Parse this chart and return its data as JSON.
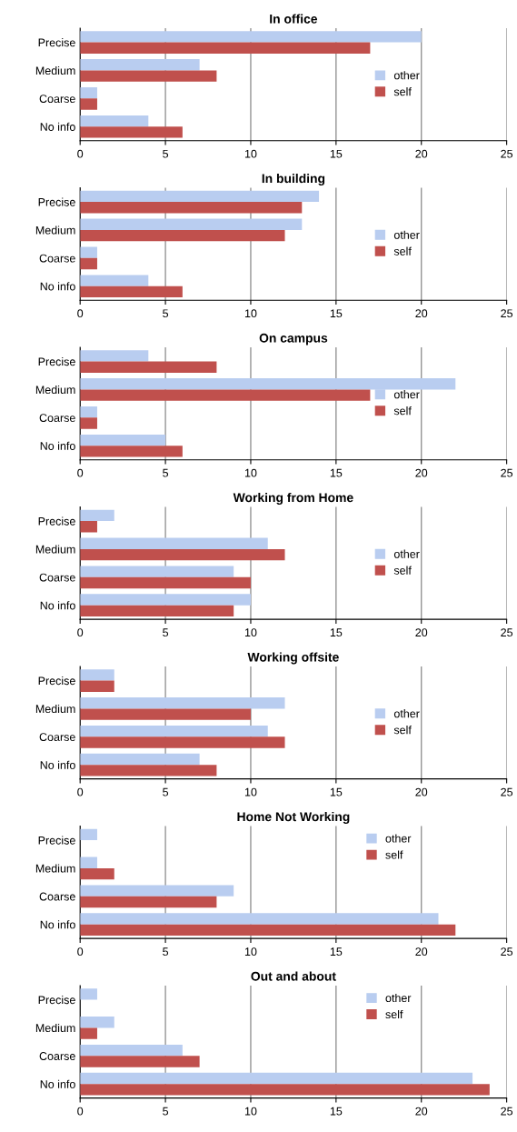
{
  "chart_data": [
    {
      "type": "bar",
      "orientation": "horizontal",
      "title": "In office",
      "categories": [
        "Precise",
        "Medium",
        "Coarse",
        "No info"
      ],
      "xlim": [
        0,
        25
      ],
      "xticks": [
        0,
        5,
        10,
        15,
        20,
        25
      ],
      "grid": "x",
      "legend": "right",
      "series": [
        {
          "name": "other",
          "color": "#b9cdf0",
          "values": [
            20,
            7,
            1,
            4
          ]
        },
        {
          "name": "self",
          "color": "#c0504d",
          "values": [
            17,
            8,
            1,
            6
          ]
        }
      ]
    },
    {
      "type": "bar",
      "orientation": "horizontal",
      "title": "In building",
      "categories": [
        "Precise",
        "Medium",
        "Coarse",
        "No info"
      ],
      "xlim": [
        0,
        25
      ],
      "xticks": [
        0,
        5,
        10,
        15,
        20,
        25
      ],
      "grid": "x",
      "legend": "right",
      "series": [
        {
          "name": "other",
          "color": "#b9cdf0",
          "values": [
            14,
            13,
            1,
            4
          ]
        },
        {
          "name": "self",
          "color": "#c0504d",
          "values": [
            13,
            12,
            1,
            6
          ]
        }
      ]
    },
    {
      "type": "bar",
      "orientation": "horizontal",
      "title": "On campus",
      "categories": [
        "Precise",
        "Medium",
        "Coarse",
        "No info"
      ],
      "xlim": [
        0,
        25
      ],
      "xticks": [
        0,
        5,
        10,
        15,
        20,
        25
      ],
      "grid": "x",
      "legend": "right",
      "series": [
        {
          "name": "other",
          "color": "#b9cdf0",
          "values": [
            4,
            22,
            1,
            5
          ]
        },
        {
          "name": "self",
          "color": "#c0504d",
          "values": [
            8,
            17,
            1,
            6
          ]
        }
      ]
    },
    {
      "type": "bar",
      "orientation": "horizontal",
      "title": "Working from Home",
      "categories": [
        "Precise",
        "Medium",
        "Coarse",
        "No info"
      ],
      "xlim": [
        0,
        25
      ],
      "xticks": [
        0,
        5,
        10,
        15,
        20,
        25
      ],
      "grid": "x",
      "legend": "right",
      "series": [
        {
          "name": "other",
          "color": "#b9cdf0",
          "values": [
            2,
            11,
            9,
            10
          ]
        },
        {
          "name": "self",
          "color": "#c0504d",
          "values": [
            1,
            12,
            10,
            9
          ]
        }
      ]
    },
    {
      "type": "bar",
      "orientation": "horizontal",
      "title": "Working offsite",
      "categories": [
        "Precise",
        "Medium",
        "Coarse",
        "No info"
      ],
      "xlim": [
        0,
        25
      ],
      "xticks": [
        0,
        5,
        10,
        15,
        20,
        25
      ],
      "grid": "x",
      "legend": "right",
      "series": [
        {
          "name": "other",
          "color": "#b9cdf0",
          "values": [
            2,
            12,
            11,
            7
          ]
        },
        {
          "name": "self",
          "color": "#c0504d",
          "values": [
            2,
            10,
            12,
            8
          ]
        }
      ]
    },
    {
      "type": "bar",
      "orientation": "horizontal",
      "title": "Home Not Working",
      "categories": [
        "Precise",
        "Medium",
        "Coarse",
        "No info"
      ],
      "xlim": [
        0,
        25
      ],
      "xticks": [
        0,
        5,
        10,
        15,
        20,
        25
      ],
      "grid": "x",
      "legend": "top right",
      "series": [
        {
          "name": "other",
          "color": "#b9cdf0",
          "values": [
            1,
            1,
            9,
            21
          ]
        },
        {
          "name": "self",
          "color": "#c0504d",
          "values": [
            0,
            2,
            8,
            22
          ]
        }
      ]
    },
    {
      "type": "bar",
      "orientation": "horizontal",
      "title": "Out and about",
      "categories": [
        "Precise",
        "Medium",
        "Coarse",
        "No info"
      ],
      "xlim": [
        0,
        25
      ],
      "xticks": [
        0,
        5,
        10,
        15,
        20,
        25
      ],
      "grid": "x",
      "legend": "top right",
      "series": [
        {
          "name": "other",
          "color": "#b9cdf0",
          "values": [
            1,
            2,
            6,
            23
          ]
        },
        {
          "name": "self",
          "color": "#c0504d",
          "values": [
            0,
            1,
            7,
            24
          ]
        }
      ]
    }
  ]
}
